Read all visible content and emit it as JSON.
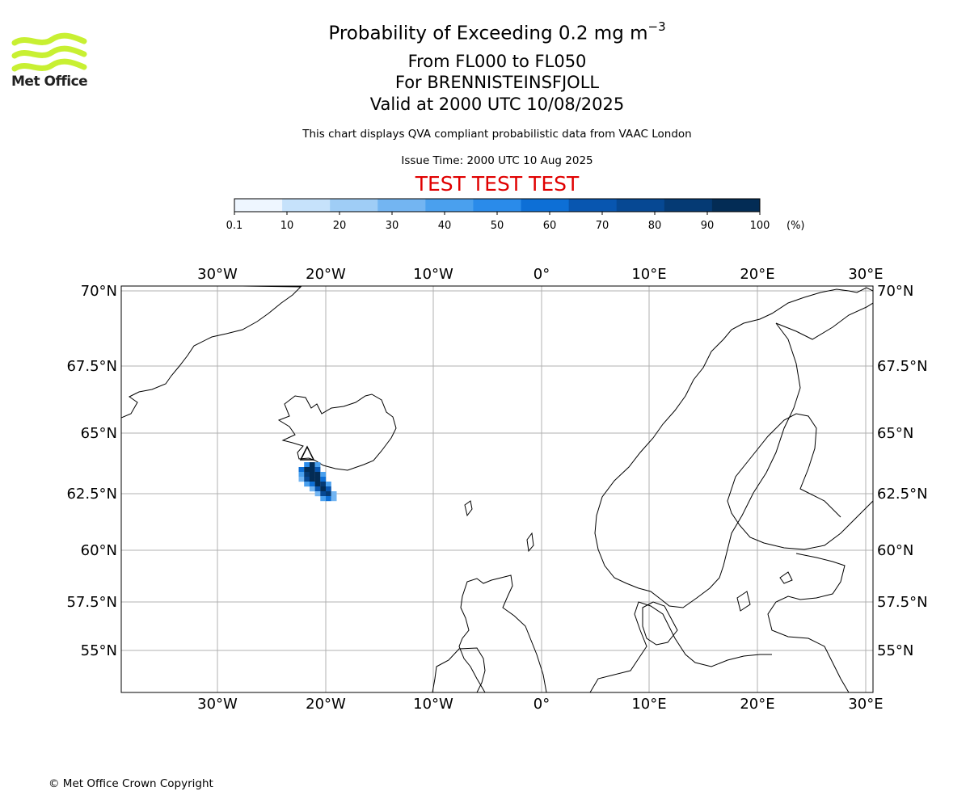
{
  "header": {
    "title_main": "Probability of Exceeding 0.2 mg m",
    "title_exponent": "−3",
    "subtitle_levels": "From FL000 to FL050",
    "subtitle_volcano": "For BRENNISTEINSFJOLL",
    "subtitle_valid": "Valid at 2000 UTC 10/08/2025",
    "description": "This chart displays QVA compliant probabilistic data from VAAC London",
    "issue_time": "Issue Time: 2000 UTC 10 Aug 2025",
    "test_banner": "TEST TEST TEST",
    "test_color": "#e00000"
  },
  "logo": {
    "text": "Met Office",
    "color": "#c8f032"
  },
  "footer": {
    "copyright": "© Met Office Crown Copyright"
  },
  "colorbar": {
    "ticks": [
      "0.1",
      "10",
      "20",
      "30",
      "40",
      "50",
      "60",
      "70",
      "80",
      "90",
      "100"
    ],
    "unit": "(%)",
    "colors": [
      "#eef6ff",
      "#c6e2fb",
      "#9fcdf6",
      "#73b5f2",
      "#4aa0ee",
      "#2a8bea",
      "#0d6fd6",
      "#0856b0",
      "#064893",
      "#053a74",
      "#032c55"
    ]
  },
  "map": {
    "lon_labels": [
      "30°W",
      "20°W",
      "10°W",
      "0°",
      "10°E",
      "20°E",
      "30°E"
    ],
    "lat_labels": [
      "70°N",
      "67.5°N",
      "65°N",
      "62.5°N",
      "60°N",
      "57.5°N",
      "55°N"
    ]
  },
  "chart_data": {
    "type": "heatmap",
    "title": "Probability of Exceeding 0.2 mg m−3",
    "variable": "probability (%)",
    "bins": [
      0.1,
      10,
      20,
      30,
      40,
      50,
      60,
      70,
      80,
      90,
      100
    ],
    "lon_ticks": [
      -30,
      -20,
      -10,
      0,
      10,
      20,
      30
    ],
    "lat_ticks": [
      70,
      67.5,
      65,
      62.5,
      60,
      57.5,
      55
    ],
    "source_volcano": {
      "name": "BRENNISTEINSFJOLL",
      "lon": -21.8,
      "lat": 63.9
    },
    "plume_cells_lon_lat_prob": [
      [
        -22.0,
        63.8,
        40
      ],
      [
        -21.5,
        63.8,
        95
      ],
      [
        -21.0,
        63.8,
        30
      ],
      [
        -22.5,
        63.6,
        55
      ],
      [
        -22.0,
        63.6,
        95
      ],
      [
        -21.5,
        63.6,
        95
      ],
      [
        -21.0,
        63.6,
        60
      ],
      [
        -22.5,
        63.4,
        35
      ],
      [
        -22.0,
        63.4,
        85
      ],
      [
        -21.5,
        63.4,
        95
      ],
      [
        -21.0,
        63.4,
        90
      ],
      [
        -20.5,
        63.4,
        35
      ],
      [
        -22.5,
        63.2,
        25
      ],
      [
        -22.0,
        63.2,
        70
      ],
      [
        -21.5,
        63.2,
        95
      ],
      [
        -21.0,
        63.2,
        95
      ],
      [
        -20.5,
        63.2,
        55
      ],
      [
        -22.0,
        63.0,
        30
      ],
      [
        -21.5,
        63.0,
        55
      ],
      [
        -21.0,
        63.0,
        95
      ],
      [
        -20.5,
        63.0,
        85
      ],
      [
        -20.0,
        63.0,
        30
      ],
      [
        -21.5,
        62.8,
        20
      ],
      [
        -21.0,
        62.8,
        60
      ],
      [
        -20.5,
        62.8,
        95
      ],
      [
        -20.0,
        62.8,
        65
      ],
      [
        -21.0,
        62.6,
        25
      ],
      [
        -20.5,
        62.6,
        70
      ],
      [
        -20.0,
        62.6,
        80
      ],
      [
        -19.5,
        62.6,
        25
      ],
      [
        -20.5,
        62.4,
        35
      ],
      [
        -20.0,
        62.4,
        55
      ],
      [
        -19.5,
        62.4,
        20
      ]
    ]
  }
}
